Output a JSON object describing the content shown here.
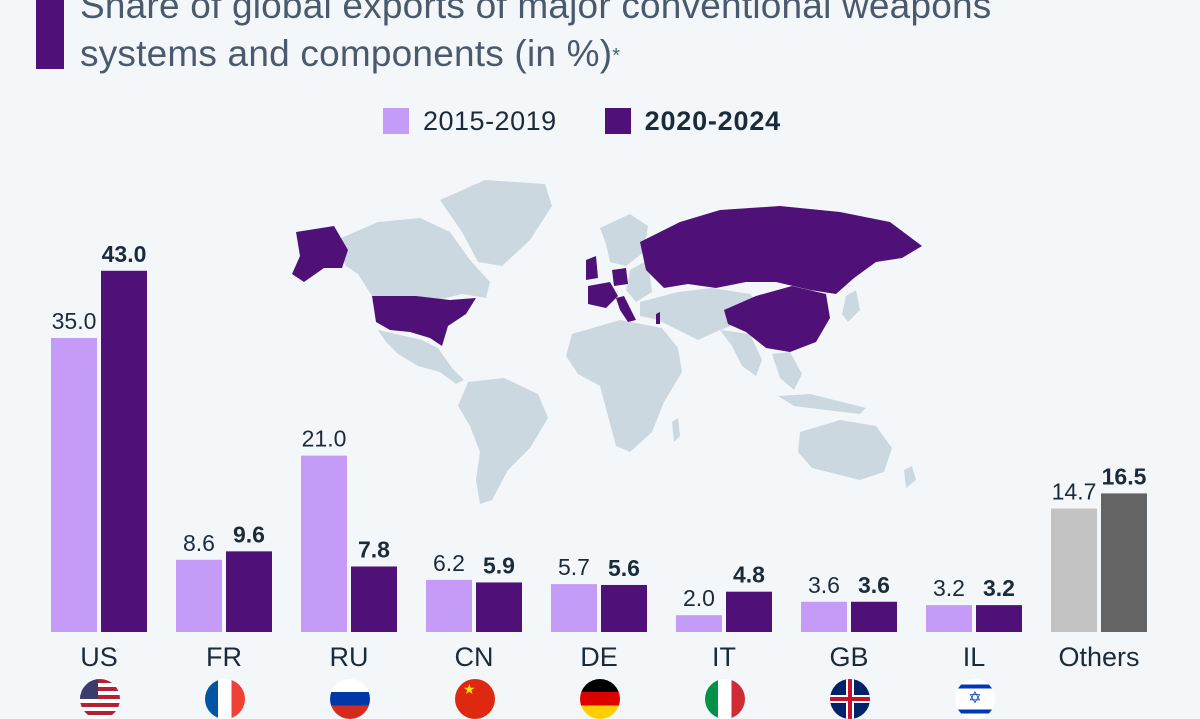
{
  "title": "Share of global exports of major conventional weapons systems and components (in %)",
  "title_note_marker": "*",
  "colors": {
    "period1": "#c59bf8",
    "period2": "#4f1178",
    "others1": "#c3c3c3",
    "others2": "#646464",
    "map_land": "#ccd8df",
    "map_highlight": "#4f1178",
    "background": "#f4f7fa",
    "text": "#1c2b3a"
  },
  "legend": {
    "period1_label": "2015-2019",
    "period2_label": "2020-2024"
  },
  "chart_data": {
    "type": "bar",
    "categories": [
      "US",
      "FR",
      "RU",
      "CN",
      "DE",
      "IT",
      "GB",
      "IL",
      "Others"
    ],
    "series": [
      {
        "name": "2015-2019",
        "values": [
          35.0,
          8.6,
          21.0,
          6.2,
          5.7,
          2.0,
          3.6,
          3.2,
          14.7
        ]
      },
      {
        "name": "2020-2024",
        "values": [
          43.0,
          9.6,
          7.8,
          5.9,
          5.6,
          4.8,
          3.6,
          3.2,
          16.5
        ]
      }
    ],
    "value_format": "one decimal",
    "highlighted_countries_on_map": [
      "US",
      "FR",
      "RU",
      "CN",
      "DE",
      "IT",
      "GB",
      "IL"
    ],
    "flags": [
      "us-flag-icon",
      "fr-flag-icon",
      "ru-flag-icon",
      "cn-flag-icon",
      "de-flag-icon",
      "it-flag-icon",
      "gb-flag-icon",
      "il-flag-icon"
    ]
  }
}
